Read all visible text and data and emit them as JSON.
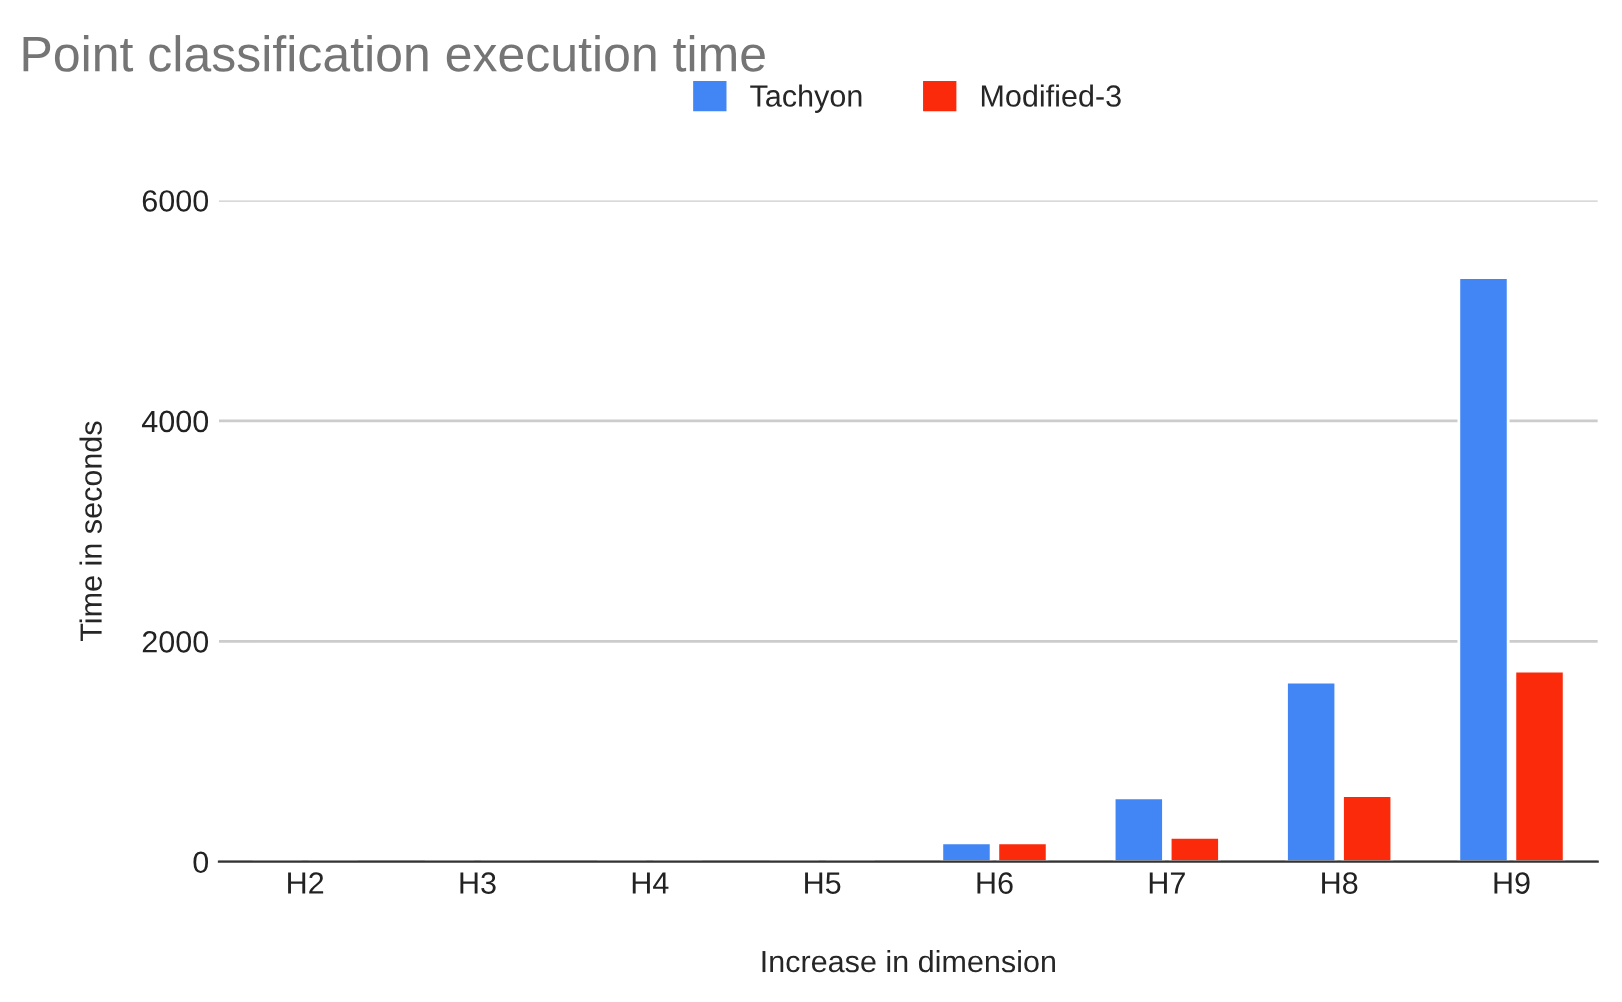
{
  "chart_data": {
    "type": "bar",
    "title": "Point classification execution time",
    "xlabel": "Increase in dimension",
    "ylabel": "Time in seconds",
    "categories": [
      "H2",
      "H3",
      "H4",
      "H5",
      "H6",
      "H7",
      "H8",
      "H9"
    ],
    "series": [
      {
        "name": "Tachyon",
        "color": "#4285f4",
        "values": [
          0,
          0,
          0,
          0,
          170,
          580,
          1630,
          5300
        ]
      },
      {
        "name": "Modified-3",
        "color": "#fa2a0a",
        "values": [
          0,
          0,
          0,
          0,
          170,
          220,
          600,
          1730
        ]
      }
    ],
    "ylim": [
      0,
      6000
    ],
    "yticks": [
      0,
      2000,
      4000,
      6000
    ],
    "grid": "y",
    "legend": "top"
  }
}
